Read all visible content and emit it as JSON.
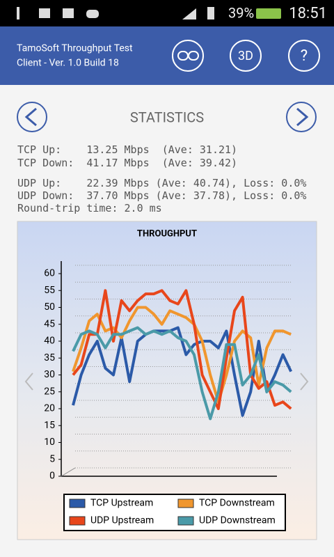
{
  "status_bar": {
    "battery": "39%",
    "time": "18:51"
  },
  "header": {
    "title_lines": [
      "TamoSoft Throughput Test",
      "Client - Ver. 1.0 Build 18"
    ],
    "buttons": [
      "3D",
      "?"
    ]
  },
  "page_title": "STATISTICS",
  "stats": {
    "tcp": [
      "TCP Up:    13.25 Mbps  (Ave: 31.21)",
      "TCP Down:  41.17 Mbps  (Ave: 39.42)"
    ],
    "udp": [
      "UDP Up:    22.39 Mbps (Ave: 40.74), Loss: 0.0%",
      "UDP Down:  37.70 Mbps (Ave: 37.78), Loss: 0.0%",
      "Round-trip time: 2.0 ms"
    ]
  },
  "chart_data": {
    "type": "line",
    "title": "THROUGHPUT",
    "ylim": [
      0,
      60
    ],
    "yticks": [
      0,
      5,
      10,
      15,
      20,
      25,
      30,
      35,
      40,
      45,
      50,
      55,
      60
    ],
    "grid": true,
    "legend": "bottom",
    "series": [
      {
        "name": "TCP Upstream",
        "color": "#2b5aa8",
        "values": [
          21,
          30,
          36,
          40,
          32,
          30,
          41,
          28,
          40,
          42,
          43,
          43,
          43,
          44,
          36,
          39,
          40,
          40,
          38,
          43,
          30,
          18,
          25,
          40,
          25,
          30,
          36,
          31
        ]
      },
      {
        "name": "TCP Downstream",
        "color": "#f0962e",
        "values": [
          31,
          38,
          46,
          48,
          43,
          44,
          41,
          46,
          50,
          50,
          48,
          45,
          49,
          48,
          47,
          45,
          40,
          30,
          22,
          30,
          40,
          43,
          41,
          27,
          38,
          43,
          43,
          42
        ]
      },
      {
        "name": "UDP Upstream",
        "color": "#e8461b",
        "values": [
          30,
          33,
          42,
          42,
          55,
          40,
          52,
          49,
          52,
          54,
          54,
          55,
          52,
          51,
          55,
          45,
          30,
          25,
          20,
          35,
          49,
          53,
          30,
          26,
          28,
          21,
          22,
          20
        ]
      },
      {
        "name": "UDP Downstream",
        "color": "#4a9aa8",
        "values": [
          37,
          42,
          43,
          42,
          38,
          42,
          42,
          43,
          44,
          42,
          43,
          42,
          43,
          41,
          40,
          36,
          25,
          17,
          25,
          39,
          39,
          27,
          30,
          36,
          25,
          28,
          27,
          25
        ]
      }
    ]
  }
}
